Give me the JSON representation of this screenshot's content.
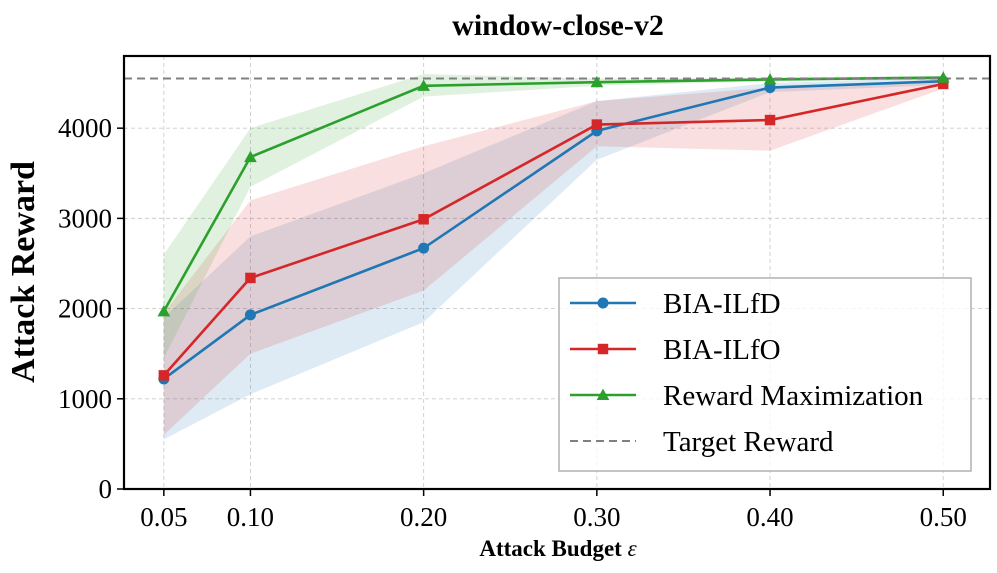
{
  "chart_data": {
    "type": "line",
    "title": "window-close-v2",
    "xlabel": "Attack Budget",
    "xlabel_symbol": "ε",
    "ylabel": "Attack Reward",
    "x": [
      0.05,
      0.1,
      0.2,
      0.3,
      0.4,
      0.5
    ],
    "x_tick_labels": [
      "0.05",
      "0.10",
      "0.20",
      "0.30",
      "0.40",
      "0.50"
    ],
    "xlim": [
      0.027,
      0.527
    ],
    "ylim": [
      0,
      4800
    ],
    "y_ticks": [
      0,
      1000,
      2000,
      3000,
      4000
    ],
    "y_tick_labels": [
      "0",
      "1000",
      "2000",
      "3000",
      "4000"
    ],
    "grid": true,
    "legend_position": "lower-right",
    "series": [
      {
        "name": "BIA-ILfD",
        "color": "#1f77b4",
        "marker": "circle",
        "values": [
          1220,
          1930,
          2670,
          3970,
          4450,
          4520
        ],
        "lower": [
          550,
          1050,
          1850,
          3650,
          4400,
          4480
        ],
        "upper": [
          1900,
          2800,
          3500,
          4300,
          4500,
          4560
        ]
      },
      {
        "name": "BIA-ILfO",
        "color": "#d62728",
        "marker": "square",
        "values": [
          1260,
          2340,
          2990,
          4040,
          4090,
          4490
        ],
        "lower": [
          600,
          1500,
          2200,
          3800,
          3750,
          4440
        ],
        "upper": [
          1950,
          3200,
          3800,
          4300,
          4450,
          4540
        ]
      },
      {
        "name": "Reward Maximization",
        "color": "#2ca02c",
        "marker": "triangle",
        "values": [
          1970,
          3680,
          4470,
          4510,
          4540,
          4560
        ],
        "lower": [
          1450,
          3350,
          4350,
          4470,
          4520,
          4540
        ],
        "upper": [
          2600,
          4000,
          4600,
          4550,
          4560,
          4580
        ]
      }
    ],
    "reference_line": {
      "name": "Target Reward",
      "value": 4550,
      "color": "#808080",
      "style": "dashed"
    }
  }
}
